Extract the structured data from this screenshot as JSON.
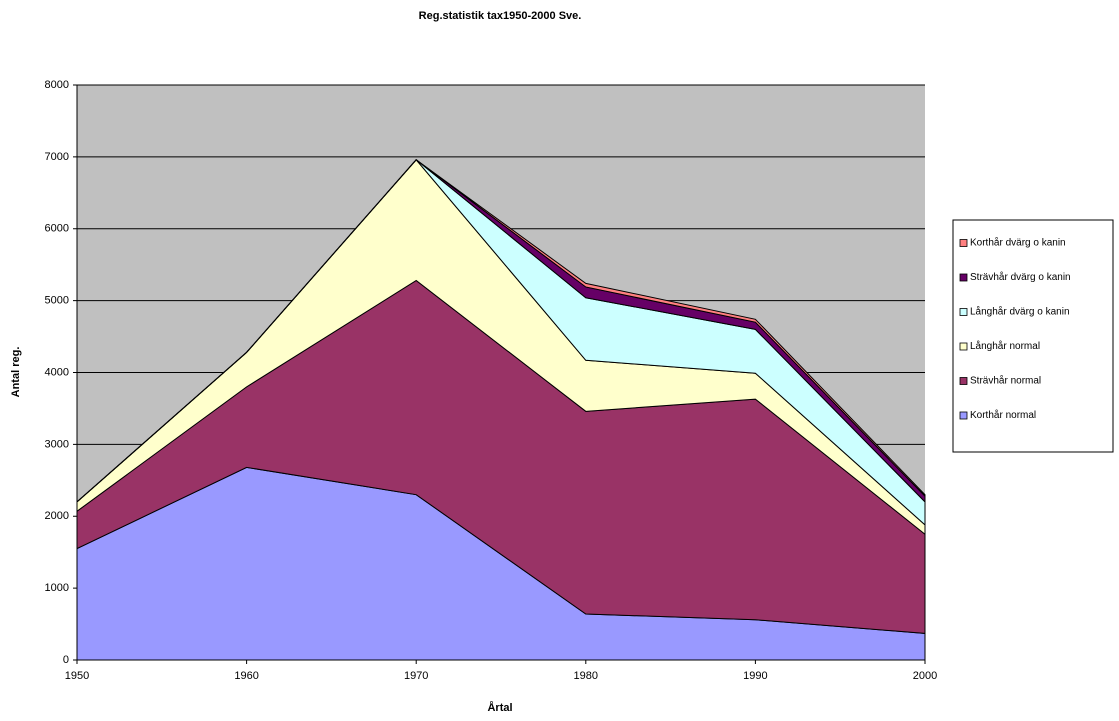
{
  "chart_data": {
    "type": "area",
    "stacked": true,
    "title": "Reg.statistik tax1950-2000 Sve.",
    "xlabel": "Årtal",
    "ylabel": "Antal reg.",
    "x": [
      1950,
      1960,
      1970,
      1980,
      1990,
      2000
    ],
    "xlim": [
      1950,
      2000
    ],
    "xticks": [
      1950,
      1960,
      1970,
      1980,
      1990,
      2000
    ],
    "ylim": [
      0,
      8000
    ],
    "yticks": [
      0,
      1000,
      2000,
      3000,
      4000,
      5000,
      6000,
      7000,
      8000
    ],
    "grid": true,
    "legend": "right",
    "series": [
      {
        "name": "Korthår normal",
        "color": "#9999ff",
        "values": [
          1550,
          2680,
          2300,
          640,
          560,
          370
        ]
      },
      {
        "name": "Strävhår normal",
        "color": "#993366",
        "values": [
          520,
          1120,
          2980,
          2820,
          3070,
          1380
        ]
      },
      {
        "name": "Långhår normal",
        "color": "#ffffcc",
        "values": [
          130,
          480,
          1680,
          710,
          360,
          130
        ]
      },
      {
        "name": "Långhår dvärg o kanin",
        "color": "#ccffff",
        "values": [
          0,
          0,
          0,
          870,
          610,
          320
        ]
      },
      {
        "name": "Strävhår dvärg o kanin",
        "color": "#660066",
        "values": [
          0,
          0,
          0,
          150,
          100,
          80
        ]
      },
      {
        "name": "Korthår dvärg o kanin",
        "color": "#ff8080",
        "values": [
          0,
          0,
          0,
          50,
          40,
          20
        ]
      }
    ]
  }
}
